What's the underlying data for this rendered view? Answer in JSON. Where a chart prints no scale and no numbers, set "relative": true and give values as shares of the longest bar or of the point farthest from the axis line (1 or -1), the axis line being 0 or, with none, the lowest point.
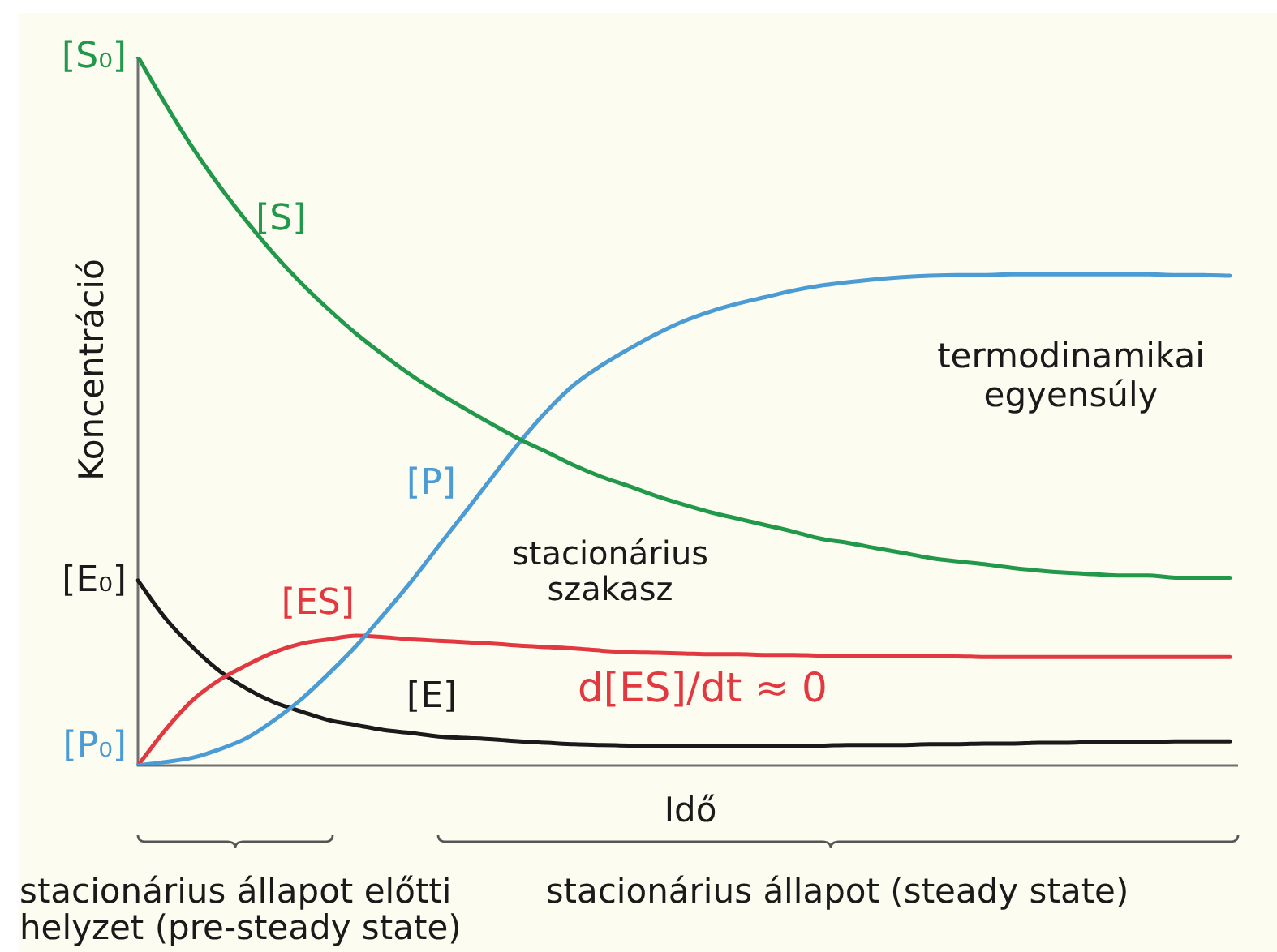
{
  "chart_data": {
    "type": "line",
    "relative": true,
    "xlabel": "Idő",
    "ylabel": "Koncentráció",
    "categories": [
      null,
      null,
      null,
      null,
      null,
      null,
      null,
      null,
      null,
      null,
      null,
      null,
      null,
      null,
      null,
      null,
      null,
      null,
      null,
      null,
      null,
      null,
      null,
      null,
      null,
      null,
      null,
      null,
      null,
      null,
      null,
      null,
      null,
      null,
      null,
      null,
      null,
      null,
      null,
      null,
      null
    ],
    "series": [
      {
        "name": "[S]",
        "color": "#22984a",
        "values": [
          1,
          0.934,
          0.872,
          0.817,
          0.767,
          0.721,
          0.68,
          0.643,
          0.609,
          0.579,
          0.551,
          0.526,
          0.503,
          0.481,
          0.46,
          0.442,
          0.423,
          0.407,
          0.394,
          0.38,
          0.368,
          0.357,
          0.348,
          0.339,
          0.33,
          0.32,
          0.314,
          0.307,
          0.3,
          0.293,
          0.288,
          0.284,
          0.279,
          0.275,
          0.272,
          0.27,
          0.268,
          0.268,
          0.265,
          0.265,
          0.265
        ]
      },
      {
        "name": "[P]",
        "color": "#4b9bd5",
        "values": [
          0,
          0.005,
          0.011,
          0.023,
          0.039,
          0.064,
          0.094,
          0.13,
          0.169,
          0.213,
          0.259,
          0.309,
          0.358,
          0.408,
          0.457,
          0.501,
          0.538,
          0.565,
          0.588,
          0.609,
          0.627,
          0.641,
          0.652,
          0.661,
          0.67,
          0.677,
          0.682,
          0.686,
          0.689,
          0.691,
          0.692,
          0.692,
          0.693,
          0.693,
          0.693,
          0.693,
          0.693,
          0.693,
          0.692,
          0.692,
          0.691
        ]
      },
      {
        "name": "[ES]",
        "color": "#e2383f",
        "values": [
          0,
          0.05,
          0.092,
          0.121,
          0.142,
          0.16,
          0.172,
          0.178,
          0.183,
          0.181,
          0.178,
          0.176,
          0.174,
          0.172,
          0.169,
          0.167,
          0.165,
          0.162,
          0.16,
          0.159,
          0.158,
          0.157,
          0.157,
          0.156,
          0.156,
          0.155,
          0.155,
          0.155,
          0.154,
          0.154,
          0.154,
          0.153,
          0.153,
          0.153,
          0.153,
          0.153,
          0.153,
          0.153,
          0.153,
          0.153,
          0.153
        ]
      },
      {
        "name": "[E]",
        "color": "#1a1a1a",
        "values": [
          0.261,
          0.208,
          0.167,
          0.133,
          0.108,
          0.089,
          0.076,
          0.064,
          0.057,
          0.05,
          0.046,
          0.041,
          0.039,
          0.037,
          0.034,
          0.032,
          0.03,
          0.029,
          0.028,
          0.027,
          0.027,
          0.027,
          0.027,
          0.027,
          0.028,
          0.028,
          0.029,
          0.029,
          0.029,
          0.03,
          0.03,
          0.031,
          0.031,
          0.032,
          0.032,
          0.033,
          0.033,
          0.033,
          0.034,
          0.034,
          0.034
        ]
      }
    ],
    "annotations": [
      "[S₀]",
      "[E₀]",
      "[P₀]",
      "termodinamikai egyensúly",
      "stacionárius szakasz",
      "d[ES]/dt ≈ 0",
      "stacionárius állapot előtti helyzet (pre-steady state)",
      "stacionárius állapot (steady state)"
    ]
  }
}
